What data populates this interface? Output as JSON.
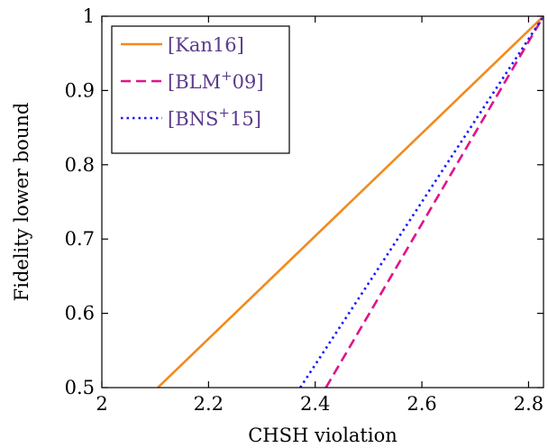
{
  "chart_data": {
    "type": "line",
    "xlabel": "CHSH violation",
    "ylabel": "Fidelity lower bound",
    "xlim": [
      2.0,
      2.828
    ],
    "ylim": [
      0.5,
      1.0
    ],
    "xticks": [
      2.0,
      2.2,
      2.4,
      2.6,
      2.8
    ],
    "xtick_labels": [
      "2",
      "2.2",
      "2.4",
      "2.6",
      "2.8"
    ],
    "yticks": [
      0.5,
      0.6,
      0.7,
      0.8,
      0.9,
      1.0
    ],
    "ytick_labels": [
      "0.5",
      "0.6",
      "0.7",
      "0.8",
      "0.9",
      "1"
    ],
    "grid": false,
    "legend_position": "top-left",
    "series": [
      {
        "name": "[Kan16]",
        "legend_main": "[Kan16]",
        "legend_sup": "",
        "legend_tail": "",
        "color": "#f28a1c",
        "style": "solid",
        "x": [
          2.105,
          2.828
        ],
        "y": [
          0.5,
          1.0
        ]
      },
      {
        "name": "[BLM+09]",
        "legend_main": "[BLM",
        "legend_sup": "+",
        "legend_tail": "09]",
        "color": "#e0138c",
        "style": "dashed",
        "x": [
          2.42,
          2.828
        ],
        "y": [
          0.5,
          1.0
        ]
      },
      {
        "name": "[BNS+15]",
        "legend_main": "[BNS",
        "legend_sup": "+",
        "legend_tail": "15]",
        "color": "#1a1aff",
        "style": "dotted",
        "x": [
          2.372,
          2.828
        ],
        "y": [
          0.5,
          1.0
        ]
      }
    ]
  }
}
